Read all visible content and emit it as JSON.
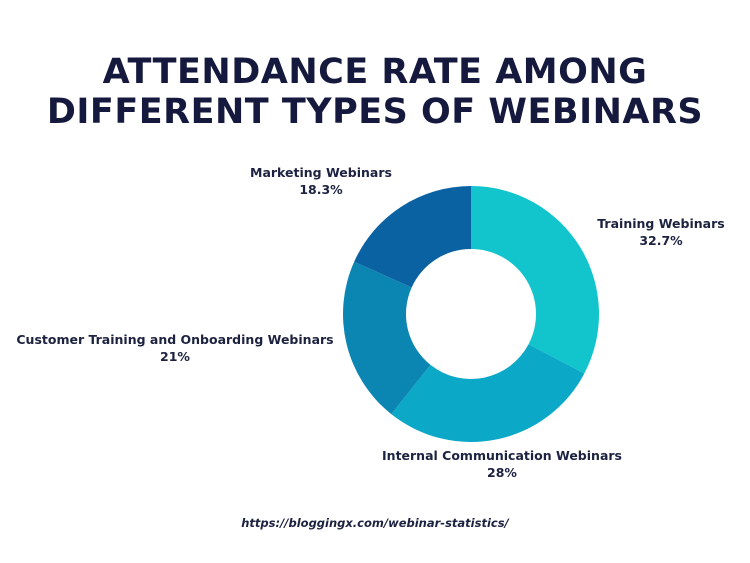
{
  "title_line_1": "ATTENDANCE RATE AMONG",
  "title_line_2": "DIFFERENT TYPES OF WEBINARS",
  "source": "https://bloggingx.com/webinar-statistics/",
  "chart_data": {
    "type": "pie",
    "title": "ATTENDANCE RATE AMONG DIFFERENT TYPES OF WEBINARS",
    "donut": true,
    "categories": [
      "Training Webinars",
      "Internal Communication Webinars",
      "Customer Training and Onboarding Webinars",
      "Marketing Webinars"
    ],
    "values": [
      32.7,
      28,
      21,
      18.3
    ],
    "value_labels": [
      "32.7%",
      "28%",
      "21%",
      "18.3%"
    ],
    "colors": [
      "#12c5cc",
      "#0ba8c7",
      "#0b86b3",
      "#0a62a2"
    ],
    "start": "12 o'clock, clockwise",
    "legend": "none"
  }
}
